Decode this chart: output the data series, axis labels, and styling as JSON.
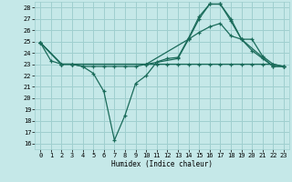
{
  "xlabel": "Humidex (Indice chaleur)",
  "bg_color": "#c5e8e8",
  "grid_color": "#9fcfcf",
  "line_color": "#1a6b5a",
  "xlim": [
    -0.5,
    23.5
  ],
  "ylim": [
    15.5,
    28.5
  ],
  "yticks": [
    16,
    17,
    18,
    19,
    20,
    21,
    22,
    23,
    24,
    25,
    26,
    27,
    28
  ],
  "xticks": [
    0,
    1,
    2,
    3,
    4,
    5,
    6,
    7,
    8,
    9,
    10,
    11,
    12,
    13,
    14,
    15,
    16,
    17,
    18,
    19,
    20,
    21,
    22,
    23
  ],
  "line1_x": [
    0,
    1,
    2,
    3,
    4,
    5,
    6,
    7,
    8,
    9,
    10,
    11,
    12,
    13,
    14,
    15,
    16,
    17,
    18,
    19,
    20,
    21,
    22,
    23
  ],
  "line1_y": [
    24.9,
    23.3,
    23.0,
    23.0,
    22.8,
    22.2,
    20.6,
    16.3,
    18.5,
    21.3,
    22.0,
    23.2,
    23.5,
    23.6,
    25.3,
    27.2,
    28.3,
    28.3,
    27.0,
    25.2,
    24.2,
    23.5,
    22.8,
    22.8
  ],
  "line2_x": [
    0,
    2,
    3,
    10,
    14,
    15,
    16,
    17,
    18,
    19,
    22,
    23
  ],
  "line2_y": [
    24.9,
    23.0,
    23.0,
    23.0,
    25.2,
    27.0,
    28.3,
    28.3,
    26.8,
    25.2,
    22.8,
    22.8
  ],
  "line3_x": [
    0,
    2,
    3,
    10,
    13,
    14,
    15,
    16,
    17,
    18,
    19,
    20,
    21,
    22,
    23
  ],
  "line3_y": [
    24.9,
    23.0,
    23.0,
    23.0,
    23.5,
    25.2,
    25.8,
    26.3,
    26.6,
    25.5,
    25.2,
    25.2,
    23.7,
    23.0,
    22.8
  ],
  "line4_x": [
    0,
    2,
    3,
    4,
    5,
    6,
    7,
    8,
    9,
    10,
    11,
    12,
    13,
    14,
    15,
    16,
    17,
    18,
    19,
    20,
    21,
    22,
    23
  ],
  "line4_y": [
    24.9,
    23.0,
    23.0,
    22.8,
    22.8,
    22.8,
    22.8,
    22.8,
    22.8,
    23.0,
    23.0,
    23.0,
    23.0,
    23.0,
    23.0,
    23.0,
    23.0,
    23.0,
    23.0,
    23.0,
    23.0,
    23.0,
    22.8
  ]
}
